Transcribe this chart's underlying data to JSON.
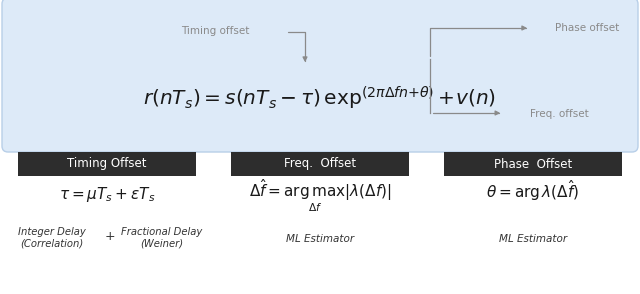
{
  "bg_color": "#ffffff",
  "top_box_facecolor": "#ddeaf8",
  "top_box_edgecolor": "#b8cfe8",
  "header_box_color": "#2d2d2d",
  "header_text_color": "#ffffff",
  "annotation_color": "#8a8a8a",
  "arrow_color": "#8a8a8a",
  "timing_offset_label": "Timing offset",
  "phase_offset_label": "Phase offset",
  "freq_offset_label": "Freq. offset",
  "col1_header": "Timing Offset",
  "col2_header": "Freq.  Offset",
  "col3_header": "Phase  Offset",
  "col2_sub": "ML Estimator",
  "col3_sub": "ML Estimator"
}
